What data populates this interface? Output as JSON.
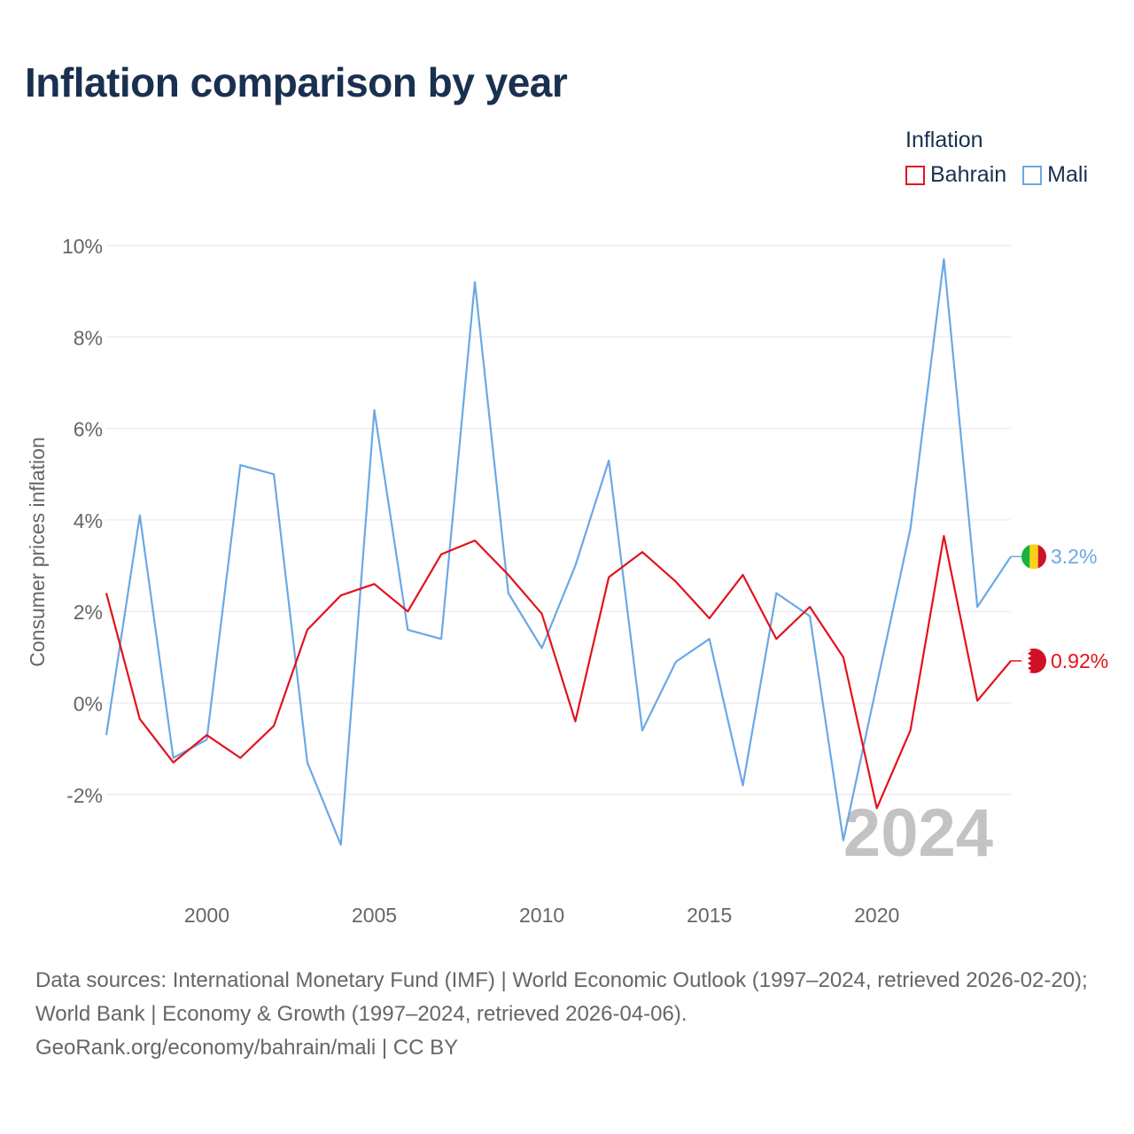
{
  "title": "Inflation comparison by year",
  "legend": {
    "title": "Inflation",
    "items": [
      {
        "label": "Bahrain",
        "color": "#e3121b"
      },
      {
        "label": "Mali",
        "color": "#6aa8e6"
      }
    ]
  },
  "footer": {
    "sources": "Data sources: International Monetary Fund (IMF) | World Economic Outlook (1997–2024, retrieved 2026-02-20); World Bank | Economy & Growth (1997–2024, retrieved 2026-04-06).",
    "credit": "GeoRank.org/economy/bahrain/mali | CC BY"
  },
  "chart_data": {
    "type": "line",
    "title": "Inflation comparison by year",
    "ylabel": "Consumer prices inflation",
    "xlabel": "",
    "watermark": "2024",
    "x": [
      1997,
      1998,
      1999,
      2000,
      2001,
      2002,
      2003,
      2004,
      2005,
      2006,
      2007,
      2008,
      2009,
      2010,
      2011,
      2012,
      2013,
      2014,
      2015,
      2016,
      2017,
      2018,
      2019,
      2020,
      2021,
      2022,
      2023,
      2024
    ],
    "xlim": [
      1997,
      2024
    ],
    "ylim": [
      -4,
      10.5
    ],
    "yticks": [
      -2,
      0,
      2,
      4,
      6,
      8,
      10
    ],
    "ytick_labels": [
      "-2%",
      "0%",
      "2%",
      "4%",
      "6%",
      "8%",
      "10%"
    ],
    "xticks": [
      2000,
      2005,
      2010,
      2015,
      2020
    ],
    "xtick_labels": [
      "2000",
      "2005",
      "2010",
      "2015",
      "2020"
    ],
    "grid": true,
    "series": [
      {
        "name": "Bahrain",
        "color": "#e3121b",
        "end_label": "0.92%",
        "values": [
          2.4,
          -0.35,
          -1.3,
          -0.7,
          -1.2,
          -0.5,
          1.6,
          2.35,
          2.6,
          2.0,
          3.25,
          3.55,
          2.8,
          1.95,
          -0.4,
          2.75,
          3.3,
          2.65,
          1.85,
          2.8,
          1.4,
          2.1,
          1.0,
          -2.3,
          -0.6,
          3.65,
          0.05,
          0.92
        ]
      },
      {
        "name": "Mali",
        "color": "#6aa8e6",
        "end_label": "3.2%",
        "values": [
          -0.7,
          4.1,
          -1.2,
          -0.8,
          5.2,
          5.0,
          -1.3,
          -3.1,
          6.4,
          1.6,
          1.4,
          9.2,
          2.4,
          1.2,
          3.0,
          5.3,
          -0.6,
          0.9,
          1.4,
          -1.8,
          2.4,
          1.9,
          -3.0,
          0.4,
          3.8,
          9.7,
          2.1,
          3.2
        ]
      }
    ]
  }
}
